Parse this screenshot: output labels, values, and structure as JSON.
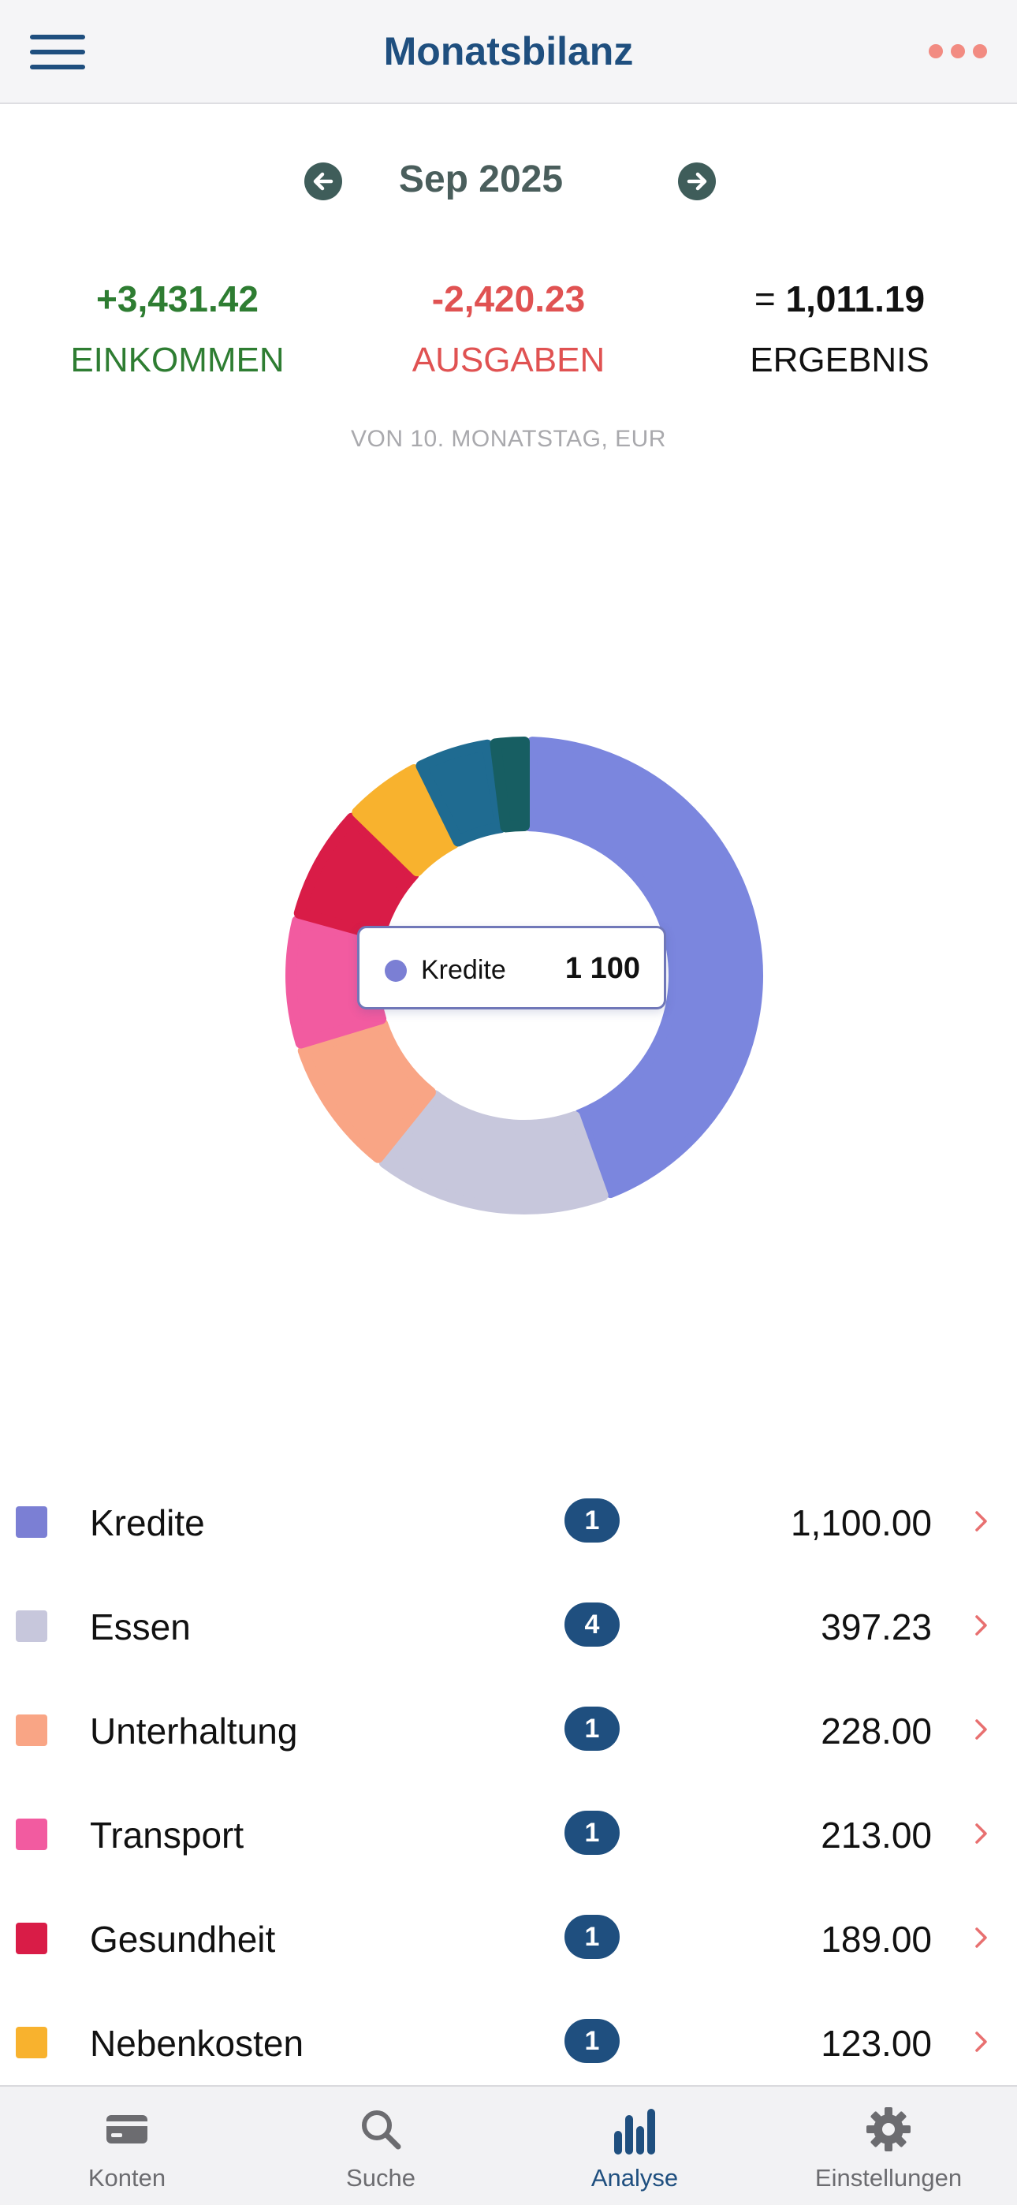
{
  "header": {
    "title": "Monatsbilanz"
  },
  "period": {
    "label": "Sep 2025"
  },
  "summary": {
    "income_value": "+3,431.42",
    "income_label": "EINKOMMEN",
    "expense_value": "-2,420.23",
    "expense_label": "AUSGABEN",
    "result_prefix": "= ",
    "result_value": "1,011.19",
    "result_label": "ERGEBNIS",
    "note": "VON 10. MONATSTAG, EUR"
  },
  "tooltip": {
    "name": "Kredite",
    "value": "1 100"
  },
  "chart_data": {
    "type": "pie",
    "variant": "donut",
    "slices": [
      {
        "label": "Kredite",
        "value": 1100.0,
        "color": "#7b86de"
      },
      {
        "label": "Essen",
        "value": 397.23,
        "color": "#c7c7dc"
      },
      {
        "label": "Unterhaltung",
        "value": 228.0,
        "color": "#f9a585"
      },
      {
        "label": "Transport",
        "value": 213.0,
        "color": "#f25ba0"
      },
      {
        "label": "Gesundheit",
        "value": 189.0,
        "color": "#d91c47"
      },
      {
        "label": "Nebenkosten",
        "value": 123.0,
        "color": "#f8b22e"
      },
      {
        "label": "",
        "value": 120.0,
        "color": "#1f6b91"
      },
      {
        "label": "",
        "value": 50.0,
        "color": "#175e62"
      }
    ]
  },
  "categories": [
    {
      "name": "Kredite",
      "count": "1",
      "amount": "1,100.00",
      "color": "#7b7fd4"
    },
    {
      "name": "Essen",
      "count": "4",
      "amount": "397.23",
      "color": "#c7c7dc"
    },
    {
      "name": "Unterhaltung",
      "count": "1",
      "amount": "228.00",
      "color": "#f9a585"
    },
    {
      "name": "Transport",
      "count": "1",
      "amount": "213.00",
      "color": "#f25ba0"
    },
    {
      "name": "Gesundheit",
      "count": "1",
      "amount": "189.00",
      "color": "#d91c47"
    },
    {
      "name": "Nebenkosten",
      "count": "1",
      "amount": "123.00",
      "color": "#f8b22e"
    }
  ],
  "tabs": [
    {
      "label": "Konten",
      "icon": "card-icon",
      "active": false
    },
    {
      "label": "Suche",
      "icon": "search-icon",
      "active": false
    },
    {
      "label": "Analyse",
      "icon": "bar-chart-icon",
      "active": true
    },
    {
      "label": "Einstellungen",
      "icon": "gear-icon",
      "active": false
    }
  ]
}
